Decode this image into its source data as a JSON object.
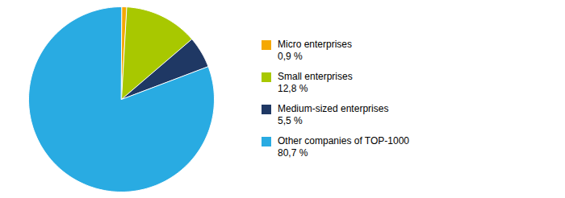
{
  "chart_data": {
    "type": "pie",
    "categories": [
      "Micro enterprises",
      "Small enterprises",
      "Medium-sized enterprises",
      "Other companies of TOP-1000"
    ],
    "values": [
      0.9,
      12.8,
      5.5,
      80.7
    ],
    "value_labels": [
      "0,9 %",
      "12,8 %",
      "5,5 %",
      "80,7 %"
    ],
    "colors": [
      "#F5A800",
      "#A8C800",
      "#1F3864",
      "#29ABE2"
    ],
    "legend": "right"
  }
}
